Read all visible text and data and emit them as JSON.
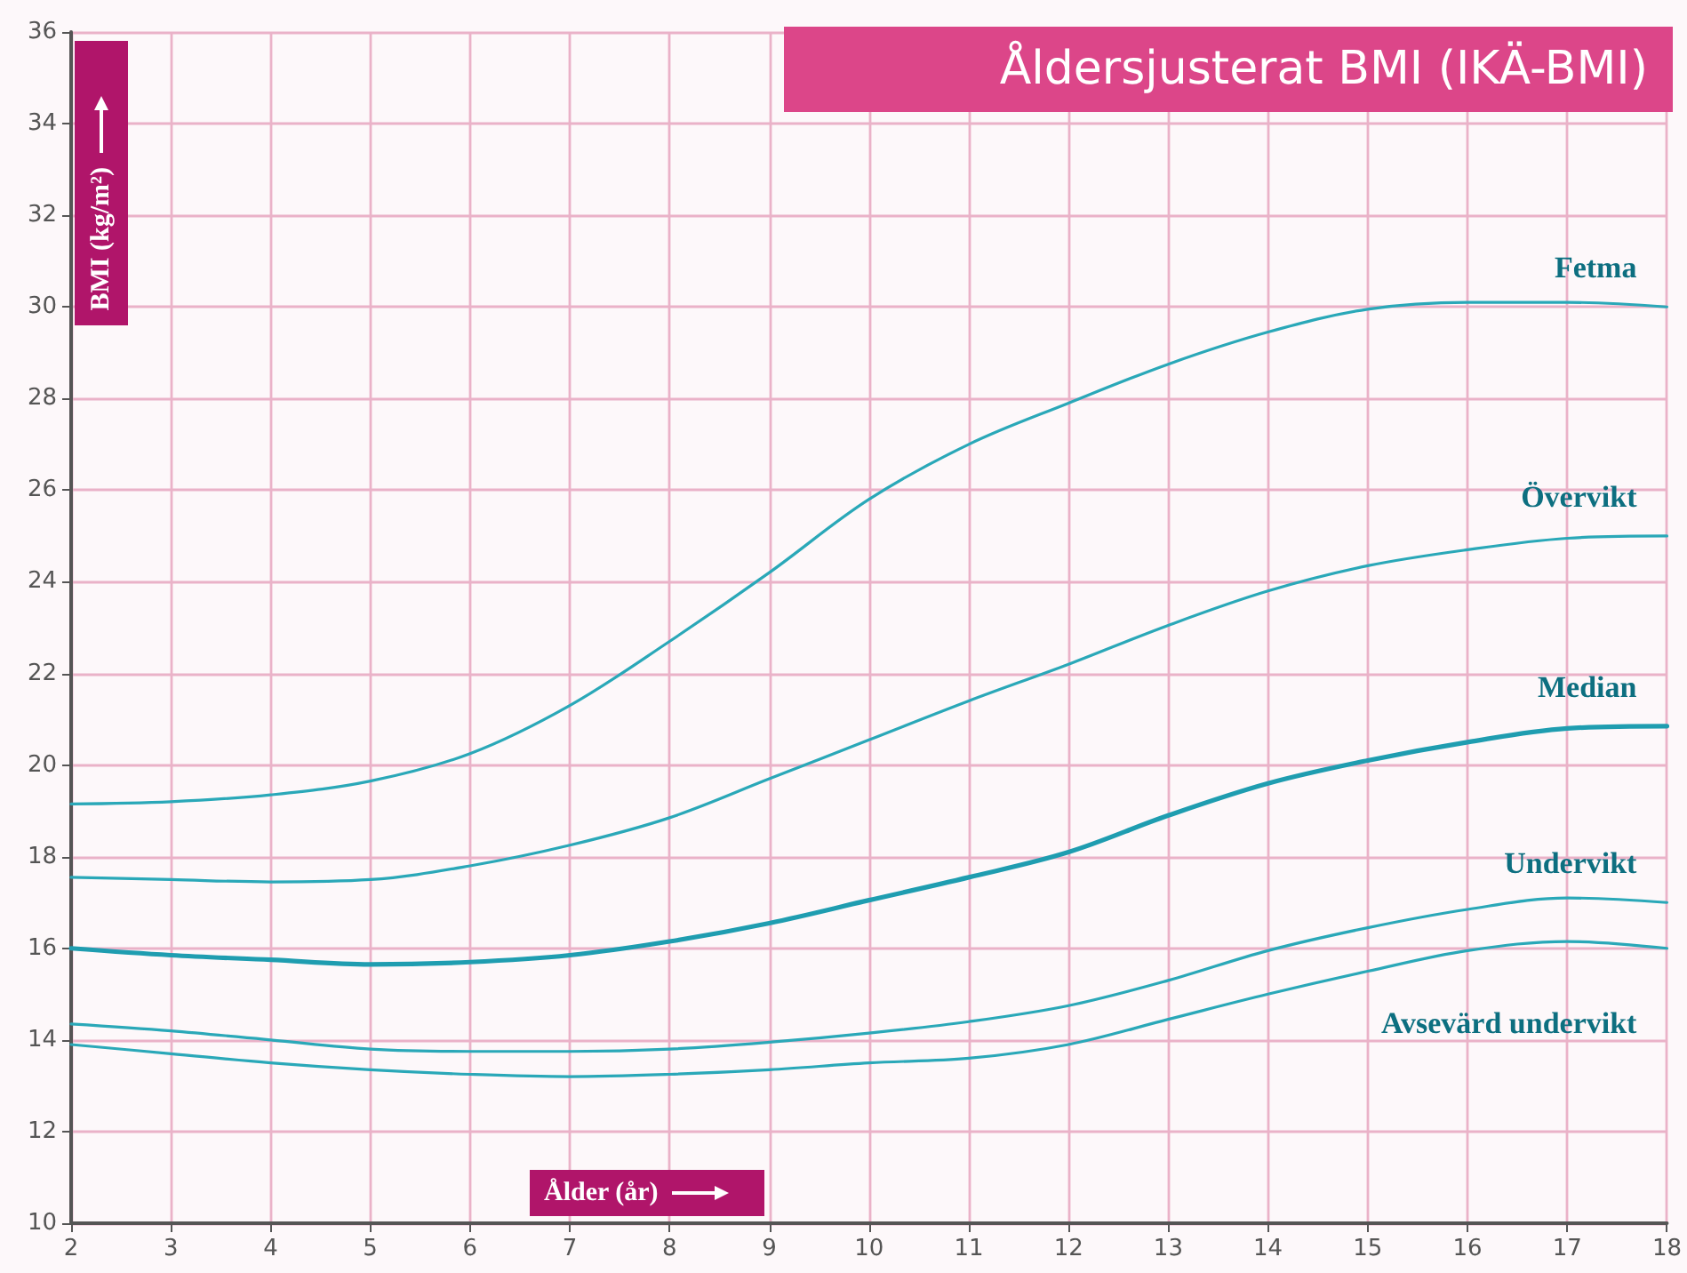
{
  "chart_data": {
    "type": "line",
    "title": "Åldersjusterat BMI (IKÄ-BMI)",
    "xlabel": "Ålder (år)",
    "ylabel": "BMI (kg/m²)",
    "x": [
      2,
      3,
      4,
      5,
      6,
      7,
      8,
      9,
      10,
      11,
      12,
      13,
      14,
      15,
      16,
      17,
      18
    ],
    "series": [
      {
        "name": "Fetma",
        "color": "#2aa8b8",
        "values": [
          19.15,
          19.2,
          19.35,
          19.65,
          20.25,
          21.3,
          22.7,
          24.2,
          25.8,
          27.0,
          27.9,
          28.75,
          29.45,
          29.95,
          30.1,
          30.1,
          30.0
        ]
      },
      {
        "name": "Övervikt",
        "color": "#2aa8b8",
        "values": [
          17.55,
          17.5,
          17.45,
          17.5,
          17.8,
          18.25,
          18.85,
          19.7,
          20.55,
          21.4,
          22.2,
          23.05,
          23.8,
          24.35,
          24.7,
          24.95,
          25.0
        ]
      },
      {
        "name": "Median",
        "color": "#1f9db0",
        "values": [
          16.0,
          15.85,
          15.75,
          15.65,
          15.7,
          15.85,
          16.15,
          16.55,
          17.05,
          17.55,
          18.1,
          18.9,
          19.6,
          20.1,
          20.5,
          20.8,
          20.85
        ]
      },
      {
        "name": "Undervikt",
        "color": "#2aa8b8",
        "values": [
          14.35,
          14.2,
          14.0,
          13.8,
          13.75,
          13.75,
          13.8,
          13.95,
          14.15,
          14.4,
          14.75,
          15.3,
          15.95,
          16.45,
          16.85,
          17.1,
          17.0
        ]
      },
      {
        "name": "Avsevärd undervikt",
        "color": "#2aa8b8",
        "values": [
          13.9,
          13.7,
          13.5,
          13.35,
          13.25,
          13.2,
          13.25,
          13.35,
          13.5,
          13.6,
          13.9,
          14.45,
          15.0,
          15.5,
          15.95,
          16.15,
          16.0
        ]
      }
    ],
    "xlim": [
      2,
      18
    ],
    "xticks": [
      2,
      3,
      4,
      5,
      6,
      7,
      8,
      9,
      10,
      11,
      12,
      13,
      14,
      15,
      16,
      17,
      18
    ],
    "ylim": [
      10,
      36
    ],
    "yticks": [
      10,
      12,
      14,
      16,
      18,
      20,
      22,
      24,
      26,
      28,
      30,
      32,
      34,
      36
    ],
    "grid": true,
    "legend": false,
    "marker": "none",
    "line_style": "solid"
  }
}
